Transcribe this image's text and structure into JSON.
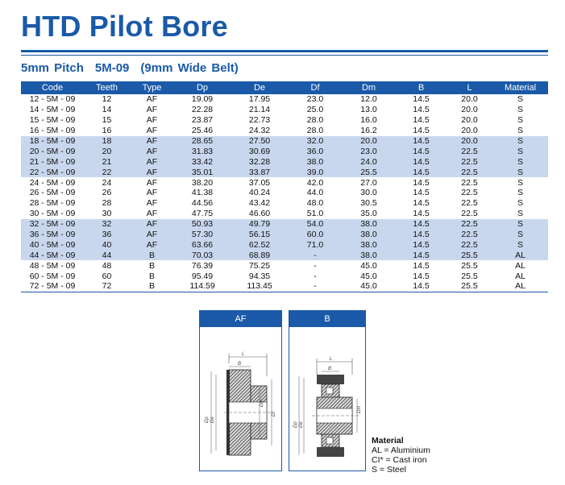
{
  "title": "HTD Pilot Bore",
  "subtitle": {
    "pitch": "5mm Pitch",
    "code": "5M-09",
    "belt": "(9mm Wide Belt)"
  },
  "table": {
    "headers": [
      "Code",
      "Teeth",
      "Type",
      "Dp",
      "De",
      "Df",
      "Dm",
      "B",
      "L",
      "Material"
    ],
    "rows": [
      [
        "12 - 5M - 09",
        "12",
        "AF",
        "19.09",
        "17.95",
        "23.0",
        "12.0",
        "14.5",
        "20.0",
        "S"
      ],
      [
        "14 - 5M - 09",
        "14",
        "AF",
        "22.28",
        "21.14",
        "25.0",
        "13.0",
        "14.5",
        "20.0",
        "S"
      ],
      [
        "15 - 5M - 09",
        "15",
        "AF",
        "23.87",
        "22.73",
        "28.0",
        "16.0",
        "14.5",
        "20.0",
        "S"
      ],
      [
        "16 - 5M - 09",
        "16",
        "AF",
        "25.46",
        "24.32",
        "28.0",
        "16.2",
        "14.5",
        "20.0",
        "S"
      ],
      [
        "18 - 5M - 09",
        "18",
        "AF",
        "28.65",
        "27.50",
        "32.0",
        "20.0",
        "14.5",
        "20.0",
        "S"
      ],
      [
        "20 - 5M - 09",
        "20",
        "AF",
        "31.83",
        "30.69",
        "36.0",
        "23.0",
        "14.5",
        "22.5",
        "S"
      ],
      [
        "21 - 5M - 09",
        "21",
        "AF",
        "33.42",
        "32.28",
        "38.0",
        "24.0",
        "14.5",
        "22.5",
        "S"
      ],
      [
        "22 - 5M - 09",
        "22",
        "AF",
        "35.01",
        "33.87",
        "39.0",
        "25.5",
        "14.5",
        "22.5",
        "S"
      ],
      [
        "24 - 5M - 09",
        "24",
        "AF",
        "38.20",
        "37.05",
        "42.0",
        "27.0",
        "14.5",
        "22.5",
        "S"
      ],
      [
        "26 - 5M - 09",
        "26",
        "AF",
        "41.38",
        "40.24",
        "44.0",
        "30.0",
        "14.5",
        "22.5",
        "S"
      ],
      [
        "28 - 5M - 09",
        "28",
        "AF",
        "44.56",
        "43.42",
        "48.0",
        "30.5",
        "14.5",
        "22.5",
        "S"
      ],
      [
        "30 - 5M - 09",
        "30",
        "AF",
        "47.75",
        "46.60",
        "51.0",
        "35.0",
        "14.5",
        "22.5",
        "S"
      ],
      [
        "32 - 5M - 09",
        "32",
        "AF",
        "50.93",
        "49.79",
        "54.0",
        "38.0",
        "14.5",
        "22.5",
        "S"
      ],
      [
        "36 - 5M - 09",
        "36",
        "AF",
        "57.30",
        "56.15",
        "60.0",
        "38.0",
        "14.5",
        "22.5",
        "S"
      ],
      [
        "40 - 5M - 09",
        "40",
        "AF",
        "63.66",
        "62.52",
        "71.0",
        "38.0",
        "14.5",
        "22.5",
        "S"
      ],
      [
        "44 - 5M - 09",
        "44",
        "B",
        "70.03",
        "68.89",
        "-",
        "38.0",
        "14.5",
        "25.5",
        "AL"
      ],
      [
        "48 - 5M - 09",
        "48",
        "B",
        "76.39",
        "75.25",
        "-",
        "45.0",
        "14.5",
        "25.5",
        "AL"
      ],
      [
        "60 - 5M - 09",
        "60",
        "B",
        "95.49",
        "94.35",
        "-",
        "45.0",
        "14.5",
        "25.5",
        "AL"
      ],
      [
        "72 - 5M - 09",
        "72",
        "B",
        "114.59",
        "113.45",
        "-",
        "45.0",
        "14.5",
        "25.5",
        "AL"
      ]
    ],
    "shaded_row_groups": [
      [
        4,
        7
      ],
      [
        12,
        15
      ]
    ],
    "shade_color": "#c9d7ee",
    "header_color": "#1a5aa8"
  },
  "drawings": {
    "af": {
      "header": "AF",
      "labels": {
        "length": "L",
        "b": "B",
        "dp": "Dp",
        "de": "De",
        "dm": "Dm",
        "df": "Df"
      }
    },
    "b": {
      "header": "B",
      "labels": {
        "length": "L",
        "b": "B",
        "dp": "Dp",
        "de": "De",
        "dm": "Dm"
      }
    }
  },
  "legend": {
    "title": "Material",
    "items": [
      "AL = Aluminium",
      "CI* = Cast iron",
      "S = Steel"
    ]
  },
  "colors": {
    "brand_blue": "#1a5aa8"
  }
}
